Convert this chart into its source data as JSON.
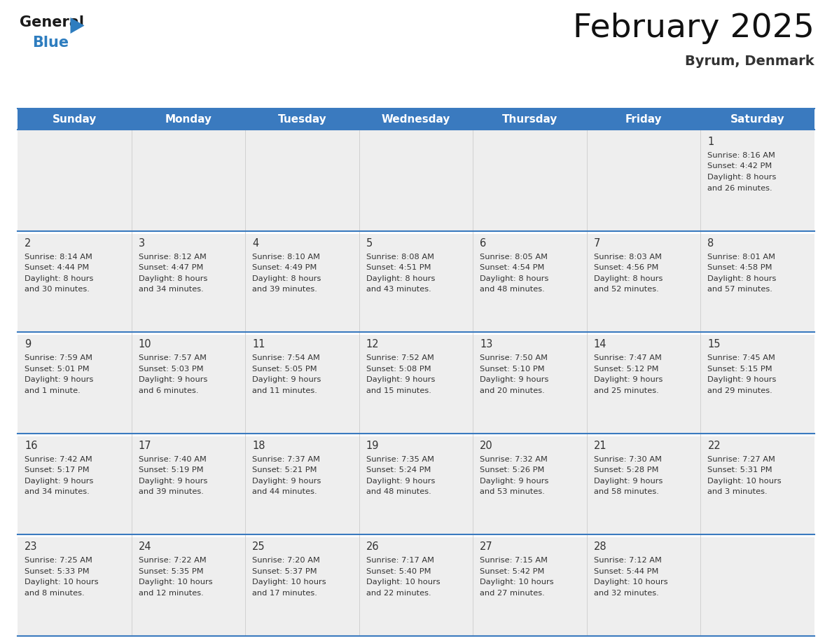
{
  "title": "February 2025",
  "subtitle": "Byrum, Denmark",
  "header_bg_color": "#3a7abf",
  "header_text_color": "#ffffff",
  "cell_bg_color": "#eeeeee",
  "row_sep_color": "#ffffff",
  "border_color": "#3a7abf",
  "day_names": [
    "Sunday",
    "Monday",
    "Tuesday",
    "Wednesday",
    "Thursday",
    "Friday",
    "Saturday"
  ],
  "days": [
    {
      "day": 1,
      "col": 6,
      "row": 0,
      "sunrise": "8:16 AM",
      "sunset": "4:42 PM",
      "daylight_hours": 8,
      "daylight_mins": 26
    },
    {
      "day": 2,
      "col": 0,
      "row": 1,
      "sunrise": "8:14 AM",
      "sunset": "4:44 PM",
      "daylight_hours": 8,
      "daylight_mins": 30
    },
    {
      "day": 3,
      "col": 1,
      "row": 1,
      "sunrise": "8:12 AM",
      "sunset": "4:47 PM",
      "daylight_hours": 8,
      "daylight_mins": 34
    },
    {
      "day": 4,
      "col": 2,
      "row": 1,
      "sunrise": "8:10 AM",
      "sunset": "4:49 PM",
      "daylight_hours": 8,
      "daylight_mins": 39
    },
    {
      "day": 5,
      "col": 3,
      "row": 1,
      "sunrise": "8:08 AM",
      "sunset": "4:51 PM",
      "daylight_hours": 8,
      "daylight_mins": 43
    },
    {
      "day": 6,
      "col": 4,
      "row": 1,
      "sunrise": "8:05 AM",
      "sunset": "4:54 PM",
      "daylight_hours": 8,
      "daylight_mins": 48
    },
    {
      "day": 7,
      "col": 5,
      "row": 1,
      "sunrise": "8:03 AM",
      "sunset": "4:56 PM",
      "daylight_hours": 8,
      "daylight_mins": 52
    },
    {
      "day": 8,
      "col": 6,
      "row": 1,
      "sunrise": "8:01 AM",
      "sunset": "4:58 PM",
      "daylight_hours": 8,
      "daylight_mins": 57
    },
    {
      "day": 9,
      "col": 0,
      "row": 2,
      "sunrise": "7:59 AM",
      "sunset": "5:01 PM",
      "daylight_hours": 9,
      "daylight_mins": 1
    },
    {
      "day": 10,
      "col": 1,
      "row": 2,
      "sunrise": "7:57 AM",
      "sunset": "5:03 PM",
      "daylight_hours": 9,
      "daylight_mins": 6
    },
    {
      "day": 11,
      "col": 2,
      "row": 2,
      "sunrise": "7:54 AM",
      "sunset": "5:05 PM",
      "daylight_hours": 9,
      "daylight_mins": 11
    },
    {
      "day": 12,
      "col": 3,
      "row": 2,
      "sunrise": "7:52 AM",
      "sunset": "5:08 PM",
      "daylight_hours": 9,
      "daylight_mins": 15
    },
    {
      "day": 13,
      "col": 4,
      "row": 2,
      "sunrise": "7:50 AM",
      "sunset": "5:10 PM",
      "daylight_hours": 9,
      "daylight_mins": 20
    },
    {
      "day": 14,
      "col": 5,
      "row": 2,
      "sunrise": "7:47 AM",
      "sunset": "5:12 PM",
      "daylight_hours": 9,
      "daylight_mins": 25
    },
    {
      "day": 15,
      "col": 6,
      "row": 2,
      "sunrise": "7:45 AM",
      "sunset": "5:15 PM",
      "daylight_hours": 9,
      "daylight_mins": 29
    },
    {
      "day": 16,
      "col": 0,
      "row": 3,
      "sunrise": "7:42 AM",
      "sunset": "5:17 PM",
      "daylight_hours": 9,
      "daylight_mins": 34
    },
    {
      "day": 17,
      "col": 1,
      "row": 3,
      "sunrise": "7:40 AM",
      "sunset": "5:19 PM",
      "daylight_hours": 9,
      "daylight_mins": 39
    },
    {
      "day": 18,
      "col": 2,
      "row": 3,
      "sunrise": "7:37 AM",
      "sunset": "5:21 PM",
      "daylight_hours": 9,
      "daylight_mins": 44
    },
    {
      "day": 19,
      "col": 3,
      "row": 3,
      "sunrise": "7:35 AM",
      "sunset": "5:24 PM",
      "daylight_hours": 9,
      "daylight_mins": 48
    },
    {
      "day": 20,
      "col": 4,
      "row": 3,
      "sunrise": "7:32 AM",
      "sunset": "5:26 PM",
      "daylight_hours": 9,
      "daylight_mins": 53
    },
    {
      "day": 21,
      "col": 5,
      "row": 3,
      "sunrise": "7:30 AM",
      "sunset": "5:28 PM",
      "daylight_hours": 9,
      "daylight_mins": 58
    },
    {
      "day": 22,
      "col": 6,
      "row": 3,
      "sunrise": "7:27 AM",
      "sunset": "5:31 PM",
      "daylight_hours": 10,
      "daylight_mins": 3
    },
    {
      "day": 23,
      "col": 0,
      "row": 4,
      "sunrise": "7:25 AM",
      "sunset": "5:33 PM",
      "daylight_hours": 10,
      "daylight_mins": 8
    },
    {
      "day": 24,
      "col": 1,
      "row": 4,
      "sunrise": "7:22 AM",
      "sunset": "5:35 PM",
      "daylight_hours": 10,
      "daylight_mins": 12
    },
    {
      "day": 25,
      "col": 2,
      "row": 4,
      "sunrise": "7:20 AM",
      "sunset": "5:37 PM",
      "daylight_hours": 10,
      "daylight_mins": 17
    },
    {
      "day": 26,
      "col": 3,
      "row": 4,
      "sunrise": "7:17 AM",
      "sunset": "5:40 PM",
      "daylight_hours": 10,
      "daylight_mins": 22
    },
    {
      "day": 27,
      "col": 4,
      "row": 4,
      "sunrise": "7:15 AM",
      "sunset": "5:42 PM",
      "daylight_hours": 10,
      "daylight_mins": 27
    },
    {
      "day": 28,
      "col": 5,
      "row": 4,
      "sunrise": "7:12 AM",
      "sunset": "5:44 PM",
      "daylight_hours": 10,
      "daylight_mins": 32
    }
  ],
  "num_rows": 5,
  "num_cols": 7,
  "logo_general_color": "#1a1a1a",
  "logo_blue_color": "#2e7dbf",
  "logo_triangle_color": "#2e7dbf"
}
